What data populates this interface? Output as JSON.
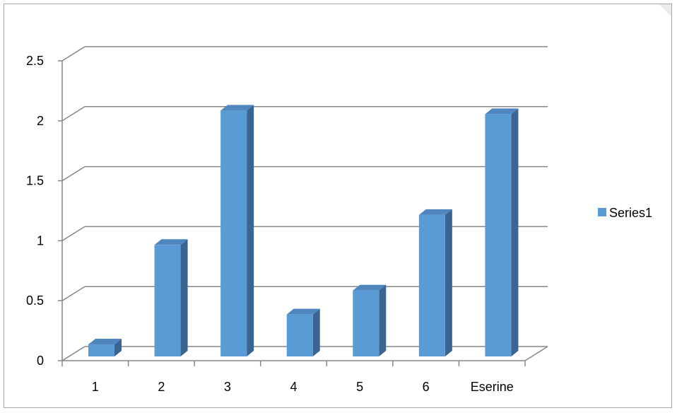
{
  "chart_data": {
    "type": "bar",
    "categories": [
      "1",
      "2",
      "3",
      "4",
      "5",
      "6",
      "Eserine"
    ],
    "series": [
      {
        "name": "Series1",
        "values": [
          0.1,
          0.93,
          2.05,
          0.35,
          0.55,
          1.18,
          2.02
        ],
        "color": "#5b9bd5"
      }
    ],
    "y_ticks": [
      "0",
      "0.5",
      "1",
      "1.5",
      "2",
      "2.5"
    ],
    "ylim": [
      0,
      2.5
    ],
    "grid": true,
    "legend_position": "right",
    "style": "3d-column",
    "colors": {
      "bar_front": "#5b9bd5",
      "bar_side": "#3a6592",
      "bar_top": "#4f86bd",
      "grid": "#868686"
    }
  }
}
